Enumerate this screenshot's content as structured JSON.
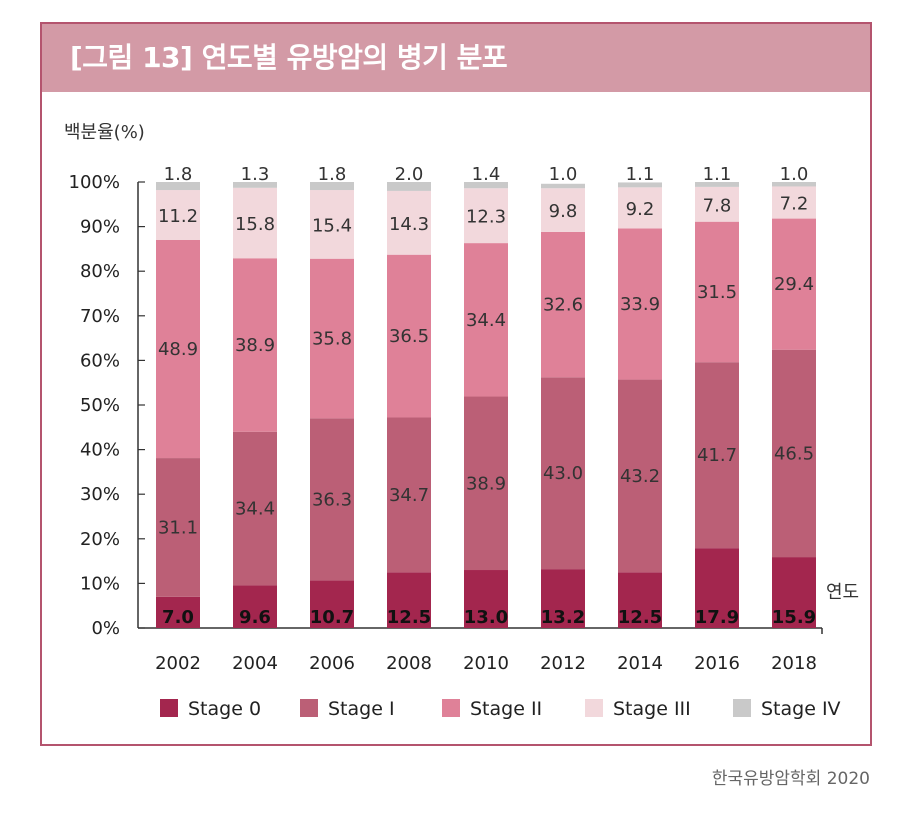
{
  "header": {
    "title": "[그림 13] 연도별 유방암의 병기 분포"
  },
  "source": "한국유방암학회 2020",
  "chart_data": {
    "type": "bar",
    "stacked": true,
    "title": "[그림 13] 연도별 유방암의 병기 분포",
    "ylabel": "백분율(%)",
    "xlabel": "연도",
    "ylim": [
      0,
      100
    ],
    "yticks": [
      "0%",
      "10%",
      "20%",
      "30%",
      "40%",
      "50%",
      "60%",
      "70%",
      "80%",
      "90%",
      "100%"
    ],
    "categories": [
      "2002",
      "2004",
      "2006",
      "2008",
      "2010",
      "2012",
      "2014",
      "2016",
      "2018"
    ],
    "series": [
      {
        "name": "Stage 0",
        "color": "#a3264e",
        "values": [
          7.0,
          9.6,
          10.7,
          12.5,
          13.0,
          13.2,
          12.5,
          17.9,
          15.9
        ],
        "labels": [
          "7.0",
          "9.6",
          "10.7",
          "12.5",
          "13.0",
          "13.2",
          "12.5",
          "17.9",
          "15.9"
        ]
      },
      {
        "name": "Stage I",
        "color": "#bb5f76",
        "values": [
          31.1,
          34.4,
          36.3,
          34.7,
          38.9,
          43.0,
          43.2,
          41.7,
          46.5
        ],
        "labels": [
          "31.1",
          "34.4",
          "36.3",
          "34.7",
          "38.9",
          "43.0",
          "43.2",
          "41.7",
          "46.5"
        ]
      },
      {
        "name": "Stage II",
        "color": "#df8198",
        "values": [
          48.9,
          38.9,
          35.8,
          36.5,
          34.4,
          32.6,
          33.9,
          31.5,
          29.4
        ],
        "labels": [
          "48.9",
          "38.9",
          "35.8",
          "36.5",
          "34.4",
          "32.6",
          "33.9",
          "31.5",
          "29.4"
        ]
      },
      {
        "name": "Stage III",
        "color": "#f2d8dc",
        "values": [
          11.2,
          15.8,
          15.4,
          14.3,
          12.3,
          9.8,
          9.2,
          7.8,
          7.2
        ],
        "labels": [
          "11.2",
          "15.8",
          "15.4",
          "14.3",
          "12.3",
          "9.8",
          "9.2",
          "7.8",
          "7.2"
        ]
      },
      {
        "name": "Stage IV",
        "color": "#c9c9c9",
        "values": [
          1.8,
          1.3,
          1.8,
          2.0,
          1.4,
          1.0,
          1.1,
          1.1,
          1.0
        ],
        "labels": [
          "1.8",
          "1.3",
          "1.8",
          "2.0",
          "1.4",
          "1.0",
          "1.1",
          "1.1",
          "1.0"
        ]
      }
    ],
    "legend": {
      "position": "bottom",
      "labels": [
        "Stage 0",
        "Stage I",
        "Stage II",
        "Stage III",
        "Stage IV"
      ]
    }
  }
}
